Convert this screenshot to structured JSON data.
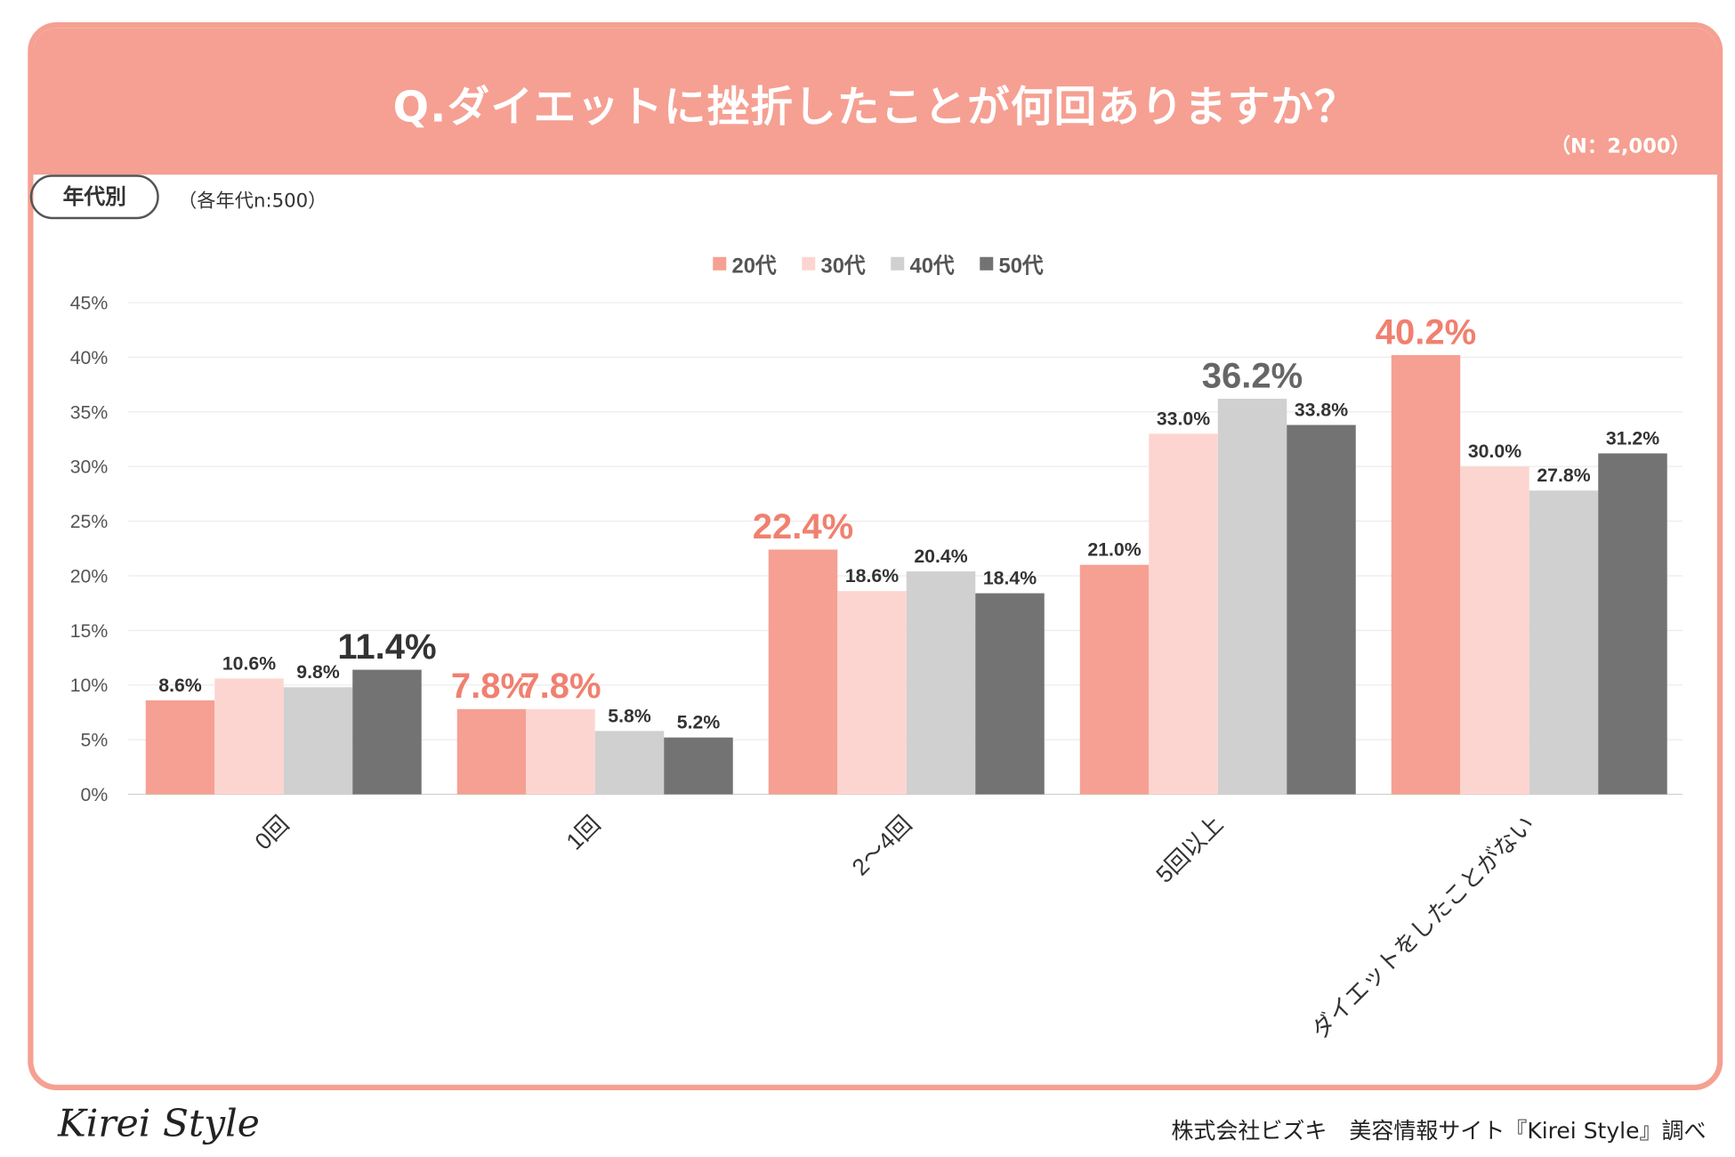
{
  "header": {
    "title": "Q.ダイエットに挫折したことが何回ありますか？",
    "n_label": "（N：2,000）"
  },
  "segment": {
    "label": "年代別",
    "note": "（各年代n:500）"
  },
  "footer": {
    "logo": "Kirei Style",
    "credit": "株式会社ビズキ　美容情報サイト『Kirei Style』調べ"
  },
  "chart_data": {
    "type": "bar",
    "title": "Q.ダイエットに挫折したことが何回ありますか？",
    "xlabel": "",
    "ylabel": "",
    "ylim": [
      0,
      45
    ],
    "yticks": [
      "0%",
      "5%",
      "10%",
      "15%",
      "20%",
      "25%",
      "30%",
      "35%",
      "40%",
      "45%"
    ],
    "grid": true,
    "legend_position": "top-center",
    "categories": [
      "0回",
      "1回",
      "2～4回",
      "5回以上",
      "ダイエットをしたことがない"
    ],
    "series": [
      {
        "name": "20代",
        "color": "#f5a092",
        "values": [
          8.6,
          7.8,
          22.4,
          21.0,
          40.2
        ]
      },
      {
        "name": "30代",
        "color": "#fdd5d0",
        "values": [
          10.6,
          7.8,
          18.6,
          33.0,
          30.0
        ]
      },
      {
        "name": "40代",
        "color": "#d0d0d0",
        "values": [
          9.8,
          5.8,
          20.4,
          36.2,
          27.8
        ]
      },
      {
        "name": "50代",
        "color": "#737373",
        "values": [
          11.4,
          5.2,
          18.4,
          33.8,
          31.2
        ]
      }
    ],
    "labels": [
      [
        "8.6%",
        "7.8%",
        "22.4%",
        "21.0%",
        "40.2%"
      ],
      [
        "10.6%",
        "7.8%",
        "18.6%",
        "33.0%",
        "30.0%"
      ],
      [
        "9.8%",
        "5.8%",
        "20.4%",
        "36.2%",
        "27.8%"
      ],
      [
        "11.4%",
        "5.2%",
        "18.4%",
        "33.8%",
        "31.2%"
      ]
    ],
    "highlight_colors": {
      "pink": "#f08070",
      "dark": "#333333",
      "gray": "#666666",
      "normal": "#333333"
    }
  }
}
